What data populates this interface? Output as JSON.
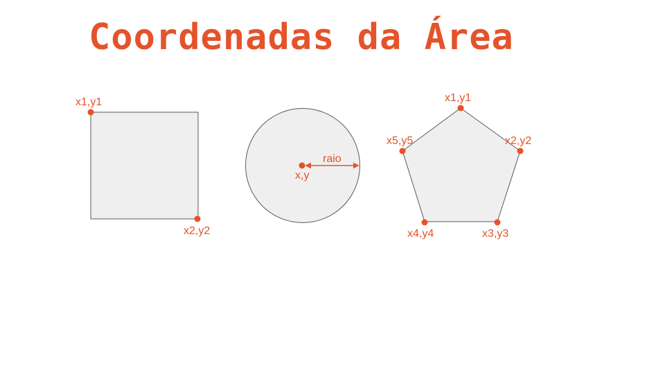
{
  "title": "Coordenadas da Área",
  "colors": {
    "accent": "#E4532B",
    "shape_fill": "#EFEFEF",
    "shape_stroke": "#595959",
    "background": "#FFFFFF"
  },
  "rectangle": {
    "labels": {
      "top_left": "x1,y1",
      "bottom_right": "x2,y2"
    }
  },
  "circle": {
    "labels": {
      "center": "x,y",
      "radius": "raio"
    }
  },
  "polygon": {
    "labels": {
      "p1": "x1,y1",
      "p2": "x2,y2",
      "p3": "x3,y3",
      "p4": "x4,y4",
      "p5": "x5,y5"
    }
  }
}
